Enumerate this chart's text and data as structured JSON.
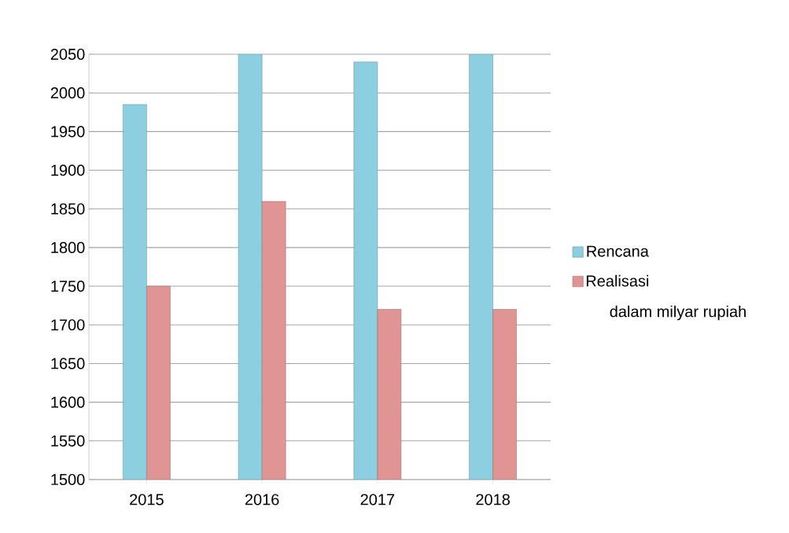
{
  "chart_data": {
    "type": "bar",
    "categories": [
      "2015",
      "2016",
      "2017",
      "2018"
    ],
    "series": [
      {
        "name": "Rencana",
        "color": "#8ccfe0",
        "values": [
          1985,
          2050,
          2040,
          2050
        ]
      },
      {
        "name": "Realisasi",
        "color": "#e09494",
        "values": [
          1750,
          1860,
          1720,
          1720
        ]
      }
    ],
    "ylim": [
      1500,
      2050
    ],
    "yticks": [
      1500,
      1550,
      1600,
      1650,
      1700,
      1750,
      1800,
      1850,
      1900,
      1950,
      2000,
      2050
    ],
    "grid": "y",
    "legend": "right",
    "annotations": [
      "dalam milyar rupiah"
    ]
  }
}
